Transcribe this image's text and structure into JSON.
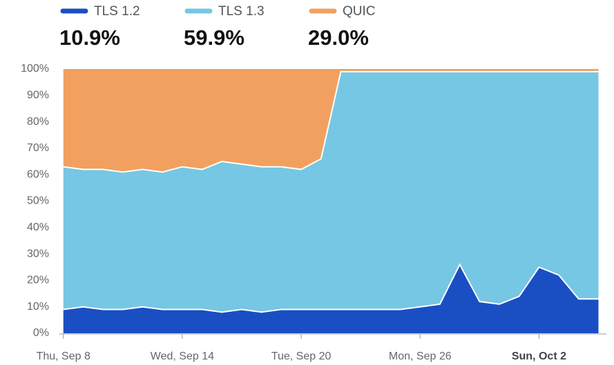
{
  "chart_data": {
    "type": "stacked_area",
    "x": [
      "Sep 8",
      "Sep 9",
      "Sep 10",
      "Sep 11",
      "Sep 12",
      "Sep 13",
      "Sep 14",
      "Sep 15",
      "Sep 16",
      "Sep 17",
      "Sep 18",
      "Sep 19",
      "Sep 20",
      "Sep 21",
      "Sep 22",
      "Sep 23",
      "Sep 24",
      "Sep 25",
      "Sep 26",
      "Sep 27",
      "Sep 28",
      "Sep 29",
      "Sep 30",
      "Oct 1",
      "Oct 2",
      "Oct 3",
      "Oct 4",
      "Oct 5"
    ],
    "series": [
      {
        "name": "TLS 1.2",
        "color": "#1a4fc4",
        "total": 10.9,
        "total_label": "10.9%",
        "values": [
          9,
          10,
          9,
          9,
          10,
          9,
          9,
          9,
          8,
          9,
          8,
          9,
          9,
          9,
          9,
          9,
          9,
          9,
          10,
          11,
          26,
          12,
          11,
          14,
          25,
          22,
          13,
          13
        ]
      },
      {
        "name": "TLS 1.3",
        "color": "#76c7e3",
        "total": 59.9,
        "total_label": "59.9%",
        "values": [
          54,
          52,
          53,
          52,
          52,
          52,
          54,
          53,
          57,
          55,
          55,
          54,
          53,
          57,
          90,
          90,
          90,
          90,
          89,
          88,
          73,
          87,
          88,
          85,
          74,
          77,
          86,
          86
        ]
      },
      {
        "name": "QUIC",
        "color": "#f2a05f",
        "total": 29.0,
        "total_label": "29.0%",
        "values": [
          37,
          38,
          38,
          39,
          38,
          39,
          37,
          38,
          35,
          36,
          37,
          37,
          38,
          34,
          1,
          1,
          1,
          1,
          1,
          1,
          1,
          1,
          1,
          1,
          1,
          1,
          1,
          1
        ]
      }
    ],
    "ylim": [
      0,
      100
    ],
    "yticks": [
      {
        "value": 0,
        "label": "0%"
      },
      {
        "value": 10,
        "label": "10%"
      },
      {
        "value": 20,
        "label": "20%"
      },
      {
        "value": 30,
        "label": "30%"
      },
      {
        "value": 40,
        "label": "40%"
      },
      {
        "value": 50,
        "label": "50%"
      },
      {
        "value": 60,
        "label": "60%"
      },
      {
        "value": 70,
        "label": "70%"
      },
      {
        "value": 80,
        "label": "80%"
      },
      {
        "value": 90,
        "label": "90%"
      },
      {
        "value": 100,
        "label": "100%"
      }
    ],
    "xticks": [
      {
        "value": "Sep 8",
        "label": "Thu, Sep 8"
      },
      {
        "value": "Sep 14",
        "label": "Wed, Sep 14"
      },
      {
        "value": "Sep 20",
        "label": "Tue, Sep 20"
      },
      {
        "value": "Sep 26",
        "label": "Mon, Sep 26"
      },
      {
        "value": "Oct 2",
        "label": "Sun, Oct 2"
      }
    ],
    "xtick_highlight": "Oct 2"
  }
}
